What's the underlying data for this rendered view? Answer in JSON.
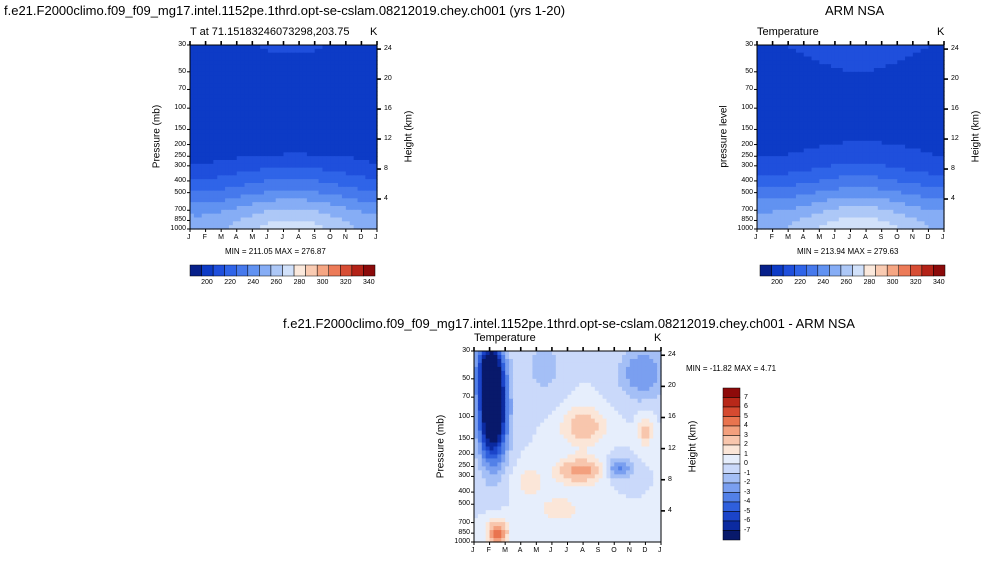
{
  "header": {
    "title_left": "f.e21.F2000climo.f09_f09_mg17.intel.1152pe.1thrd.opt-se-cslam.08212019.chey.ch001 (yrs 1-20)",
    "title_right": "ARM NSA",
    "title_bottom": "f.e21.F2000climo.f09_f09_mg17.intel.1152pe.1thrd.opt-se-cslam.08212019.chey.ch001 - ARM NSA"
  },
  "colors": {
    "abs_scale": [
      "#07208a",
      "#0d3bc6",
      "#1f4fdc",
      "#2f64e8",
      "#4679ec",
      "#6192f1",
      "#86adf5",
      "#adc8f7",
      "#d1e1fa",
      "#fbe9dc",
      "#f9cbb2",
      "#f5a683",
      "#ec7b58",
      "#d74d34",
      "#b32217",
      "#8b0a0a"
    ],
    "diff_scale": [
      "#08196b",
      "#0b2aa0",
      "#1b44c9",
      "#2f5fdc",
      "#5280e8",
      "#7a9ff0",
      "#a4bff6",
      "#cad9fa",
      "#e6eefc",
      "#fbe6d8",
      "#f8c6ad",
      "#f3a07e",
      "#e9744f",
      "#d54a30",
      "#b82819",
      "#8e0a0a"
    ]
  },
  "chart_data": [
    {
      "type": "heatmap",
      "id": "model",
      "title_left": "T at 71.15183246073298,203.75",
      "title_right": "K",
      "ylabel": "Pressure (mb)",
      "ylabel_right": "Height (km)",
      "x_ticks": [
        "J",
        "F",
        "M",
        "A",
        "M",
        "J",
        "J",
        "A",
        "S",
        "O",
        "N",
        "D",
        "J"
      ],
      "y_ticks": [
        "30",
        "50",
        "70",
        "100",
        "150",
        "200",
        "250",
        "300",
        "400",
        "500",
        "700",
        "850",
        "1000"
      ],
      "y_ticks_right": [
        "24",
        "20",
        "16",
        "12",
        "8",
        "4"
      ],
      "min_max": "MIN = 211.05 MAX = 276.87",
      "colorbar_labels": [
        "200",
        "220",
        "240",
        "260",
        "280",
        "300",
        "320",
        "340"
      ],
      "pressure_levels": [
        30,
        50,
        70,
        100,
        150,
        200,
        250,
        300,
        400,
        500,
        700,
        850,
        1000
      ],
      "temperature_profile_K": {
        "30": 217,
        "50": 215,
        "70": 214,
        "100": 214,
        "150": 214,
        "200": 215,
        "250": 217,
        "300": 222,
        "400": 232,
        "500": 241,
        "700": 256,
        "850": 263,
        "1000": 266
      },
      "seasonal_amplitude_K": {
        "30": 4,
        "50": 3,
        "70": 3,
        "100": 3,
        "150": 3,
        "200": 3,
        "250": 4,
        "300": 6,
        "400": 8,
        "500": 9,
        "700": 12,
        "850": 14,
        "1000": 16
      },
      "zlim": [
        200,
        340
      ]
    },
    {
      "type": "heatmap",
      "id": "obs",
      "title_left": "Temperature",
      "title_right": "K",
      "ylabel": "pressure level",
      "ylabel_right": "Height (km)",
      "x_ticks": [
        "J",
        "F",
        "M",
        "A",
        "M",
        "J",
        "J",
        "A",
        "S",
        "O",
        "N",
        "D",
        "J"
      ],
      "y_ticks": [
        "30",
        "50",
        "70",
        "100",
        "150",
        "200",
        "250",
        "300",
        "400",
        "500",
        "700",
        "850",
        "1000"
      ],
      "y_ticks_right": [
        "24",
        "20",
        "16",
        "12",
        "8",
        "4"
      ],
      "min_max": "MIN = 213.94 MAX = 279.63",
      "colorbar_labels": [
        "200",
        "220",
        "240",
        "260",
        "280",
        "300",
        "320",
        "340"
      ],
      "pressure_levels": [
        30,
        50,
        70,
        100,
        150,
        200,
        250,
        300,
        400,
        500,
        700,
        850,
        1000
      ],
      "temperature_profile_K": {
        "30": 219,
        "50": 216,
        "70": 215,
        "100": 215,
        "150": 215,
        "200": 217,
        "250": 219,
        "300": 224,
        "400": 234,
        "500": 243,
        "700": 258,
        "850": 265,
        "1000": 268
      },
      "seasonal_amplitude_K": {
        "30": 5,
        "50": 4,
        "70": 3,
        "100": 3,
        "150": 3,
        "200": 4,
        "250": 5,
        "300": 7,
        "400": 8,
        "500": 9,
        "700": 12,
        "850": 14,
        "1000": 16
      },
      "zlim": [
        200,
        340
      ]
    },
    {
      "type": "heatmap",
      "id": "diff",
      "title_left": "Temperature",
      "title_right": "K",
      "ylabel": "Pressure (mb)",
      "ylabel_right": "Height (km)",
      "x_ticks": [
        "J",
        "F",
        "M",
        "A",
        "M",
        "J",
        "J",
        "A",
        "S",
        "O",
        "N",
        "D",
        "J"
      ],
      "y_ticks": [
        "30",
        "50",
        "70",
        "100",
        "150",
        "200",
        "250",
        "300",
        "400",
        "500",
        "700",
        "850",
        "1000"
      ],
      "y_ticks_right": [
        "24",
        "20",
        "16",
        "12",
        "8",
        "4"
      ],
      "min_max": "MIN = -11.82 MAX =   4.71",
      "colorbar_labels": [
        "7",
        "6",
        "5",
        "4",
        "3",
        "2",
        "1",
        "0",
        "-1",
        "-2",
        "-3",
        "-4",
        "-5",
        "-6",
        "-7"
      ],
      "pressure_levels": [
        30,
        50,
        70,
        100,
        150,
        200,
        250,
        300,
        400,
        500,
        700,
        850,
        1000
      ],
      "zlim": [
        -8,
        8
      ]
    }
  ]
}
